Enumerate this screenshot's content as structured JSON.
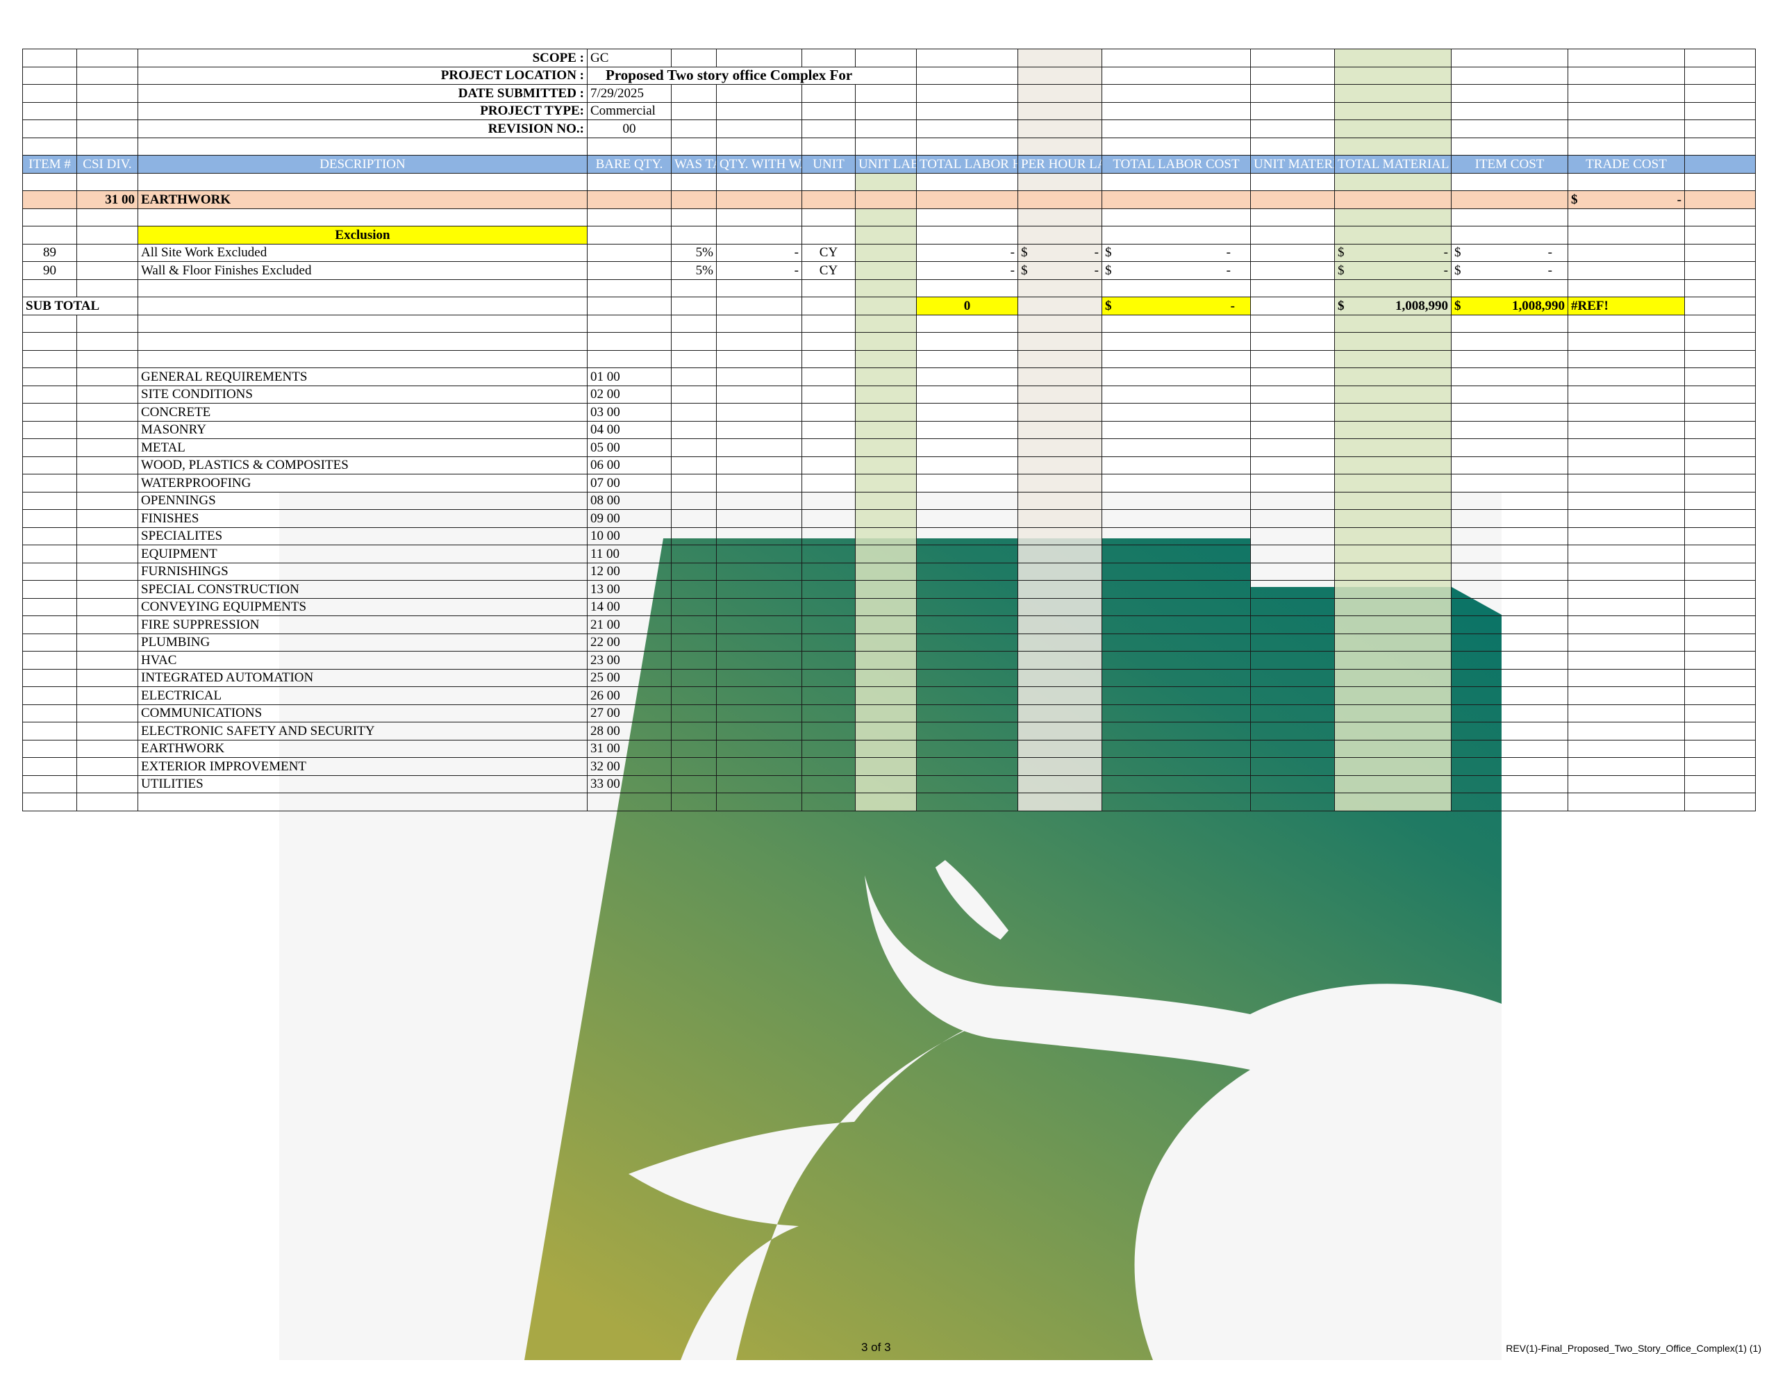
{
  "header": {
    "scope_label": "SCOPE :",
    "scope_value": "GC",
    "location_label": "PROJECT LOCATION :",
    "location_value": "Proposed Two story office Complex For",
    "date_label": "DATE SUBMITTED :",
    "date_value": "7/29/2025",
    "type_label": "PROJECT TYPE:",
    "type_value": "Commercial",
    "revision_label": "REVISION NO.:",
    "revision_value": "00"
  },
  "columns": {
    "item": "ITEM #",
    "csi": "CSI DIV.",
    "description": "DESCRIPTION",
    "bare_qty": "BARE QTY.",
    "wastage": "WAS TAGE",
    "qty_with_wastage": "QTY. WITH WASTAGE",
    "unit": "UNIT",
    "unit_labor_hours": "UNIT LABOR HOURS",
    "total_labor_hours": "TOTAL LABOR HOURS",
    "per_hour_labor_rate": "PER HOUR LABOR RATE",
    "total_labor_cost": "TOTAL LABOR COST",
    "unit_material_cost": "UNIT MATERIAL COST",
    "total_material_cost": "TOTAL MATERIAL COST",
    "item_cost": "ITEM COST",
    "trade_cost": "TRADE COST"
  },
  "section": {
    "code": "31 00",
    "name": "EARTHWORK",
    "trade_cost_symbol": "$",
    "trade_cost_value": "-"
  },
  "exclusion_label": "Exclusion",
  "items": [
    {
      "item": "89",
      "description": "All Site Work Excluded",
      "wastage": "5%",
      "qty": "-",
      "unit": "CY",
      "total_labor_hours": "-",
      "rate_symbol": "$",
      "rate_value": "-",
      "labor_symbol": "$",
      "labor_value": "-",
      "mat_symbol": "$",
      "mat_value": "-",
      "item_symbol": "$",
      "item_value": "-"
    },
    {
      "item": "90",
      "description": "Wall & Floor Finishes Excluded",
      "wastage": "5%",
      "qty": "-",
      "unit": "CY",
      "total_labor_hours": "-",
      "rate_symbol": "$",
      "rate_value": "-",
      "labor_symbol": "$",
      "labor_value": "-",
      "mat_symbol": "$",
      "mat_value": "-",
      "item_symbol": "$",
      "item_value": "-"
    }
  ],
  "subtotal": {
    "label": "SUB TOTAL",
    "total_labor_hours": "0",
    "labor_symbol": "$",
    "labor_value": "-",
    "mat_symbol": "$",
    "mat_value": "1,008,990",
    "item_symbol": "$",
    "item_value": "1,008,990",
    "trade_value": "#REF!"
  },
  "divisions": [
    {
      "name": "GENERAL REQUIREMENTS",
      "code": "01 00"
    },
    {
      "name": "SITE CONDITIONS",
      "code": "02 00"
    },
    {
      "name": "CONCRETE",
      "code": "03 00"
    },
    {
      "name": "MASONRY",
      "code": "04 00"
    },
    {
      "name": "METAL",
      "code": "05 00"
    },
    {
      "name": "WOOD, PLASTICS & COMPOSITES",
      "code": "06 00"
    },
    {
      "name": "WATERPROOFING",
      "code": "07 00"
    },
    {
      "name": "OPENNINGS",
      "code": "08 00"
    },
    {
      "name": "FINISHES",
      "code": "09 00"
    },
    {
      "name": "SPECIALITES",
      "code": "10 00"
    },
    {
      "name": "EQUIPMENT",
      "code": "11 00"
    },
    {
      "name": "FURNISHINGS",
      "code": "12 00"
    },
    {
      "name": "SPECIAL CONSTRUCTION",
      "code": "13 00"
    },
    {
      "name": "CONVEYING EQUIPMENTS",
      "code": "14 00"
    },
    {
      "name": "FIRE SUPPRESSION",
      "code": "21 00"
    },
    {
      "name": "PLUMBING",
      "code": "22 00"
    },
    {
      "name": "HVAC",
      "code": "23 00"
    },
    {
      "name": "INTEGRATED AUTOMATION",
      "code": "25 00"
    },
    {
      "name": "ELECTRICAL",
      "code": "26 00"
    },
    {
      "name": "COMMUNICATIONS",
      "code": "27 00"
    },
    {
      "name": "ELECTRONIC SAFETY AND SECURITY",
      "code": "28 00"
    },
    {
      "name": "EARTHWORK",
      "code": "31 00"
    },
    {
      "name": "EXTERIOR IMPROVEMENT",
      "code": "32 00"
    },
    {
      "name": "UTILITIES",
      "code": "33 00"
    }
  ],
  "footer": {
    "page": "3 of 3",
    "filename": "REV(1)-Final_Proposed_Two_Story_Office_Complex(1) (1)"
  },
  "colors": {
    "header_blue": "#8db3e2",
    "section_peach": "#fad3b8",
    "highlight_yellow": "#ffff00",
    "labor_green": "#d8e4be",
    "rate_beige": "#eeeae2",
    "watermark_green": "#0c7466",
    "watermark_olive": "#a8a845"
  },
  "icons": [
    "eagle-logo-watermark"
  ]
}
